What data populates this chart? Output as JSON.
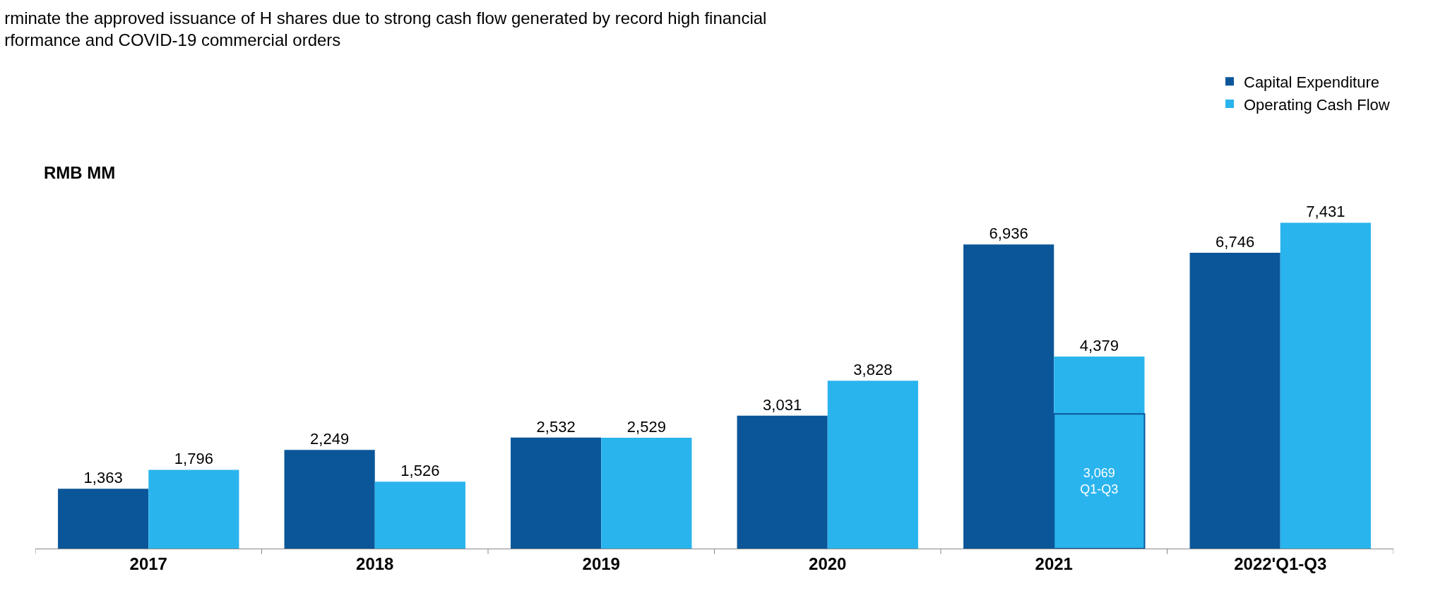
{
  "chart_data": {
    "type": "bar",
    "title": "rminate the approved issuance of H shares due to strong cash flow generated by record high financial\nrformance and COVID-19 commercial orders",
    "ylabel": "RMB MM",
    "categories": [
      "2017",
      "2018",
      "2019",
      "2020",
      "2021",
      "2022'Q1-Q3"
    ],
    "series": [
      {
        "name": "Capital Expenditure",
        "color": "#0b5699",
        "values": [
          1363,
          2249,
          2532,
          3031,
          6936,
          6746
        ],
        "value_labels": [
          "1,363",
          "2,249",
          "2,532",
          "3,031",
          "6,936",
          "6,746"
        ]
      },
      {
        "name": "Operating Cash Flow",
        "color": "#2ab4ee",
        "values": [
          1796,
          1526,
          2529,
          3828,
          4379,
          7431
        ],
        "value_labels": [
          "1,796",
          "1,526",
          "2,529",
          "3,828",
          "4,379",
          "7,431"
        ]
      },
      {
        "color": "#2ab4ee",
        "values": [
          null,
          null,
          null,
          null,
          3069,
          null
        ],
        "value_labels": [
          null,
          null,
          null,
          null,
          "3,069\nQ1-Q3",
          null
        ]
      }
    ],
    "legend": "top right"
  }
}
